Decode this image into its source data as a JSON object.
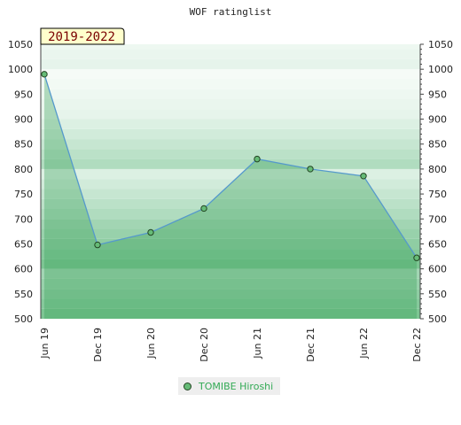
{
  "chart_data": {
    "type": "area",
    "title": "WOF ratinglist",
    "period_label": "2019-2022",
    "categories": [
      "Jun 19",
      "Dec 19",
      "Jun 20",
      "Dec 20",
      "Jun 21",
      "Dec 21",
      "Jun 22",
      "Dec 22"
    ],
    "series": [
      {
        "name": "TOMIBE Hiroshi",
        "values": [
          990,
          648,
          673,
          721,
          820,
          800,
          786,
          622
        ]
      }
    ],
    "ylim": [
      500,
      1050
    ],
    "yticks": [
      500,
      550,
      600,
      650,
      700,
      750,
      800,
      850,
      900,
      950,
      1000,
      1050
    ],
    "grid": "horizontal bands",
    "legend_position": "bottom-center",
    "colors": {
      "line": "#5599cc",
      "marker": "#66bb77",
      "band_dark": "#7bc592",
      "band_light": "#e4f3e8"
    }
  }
}
